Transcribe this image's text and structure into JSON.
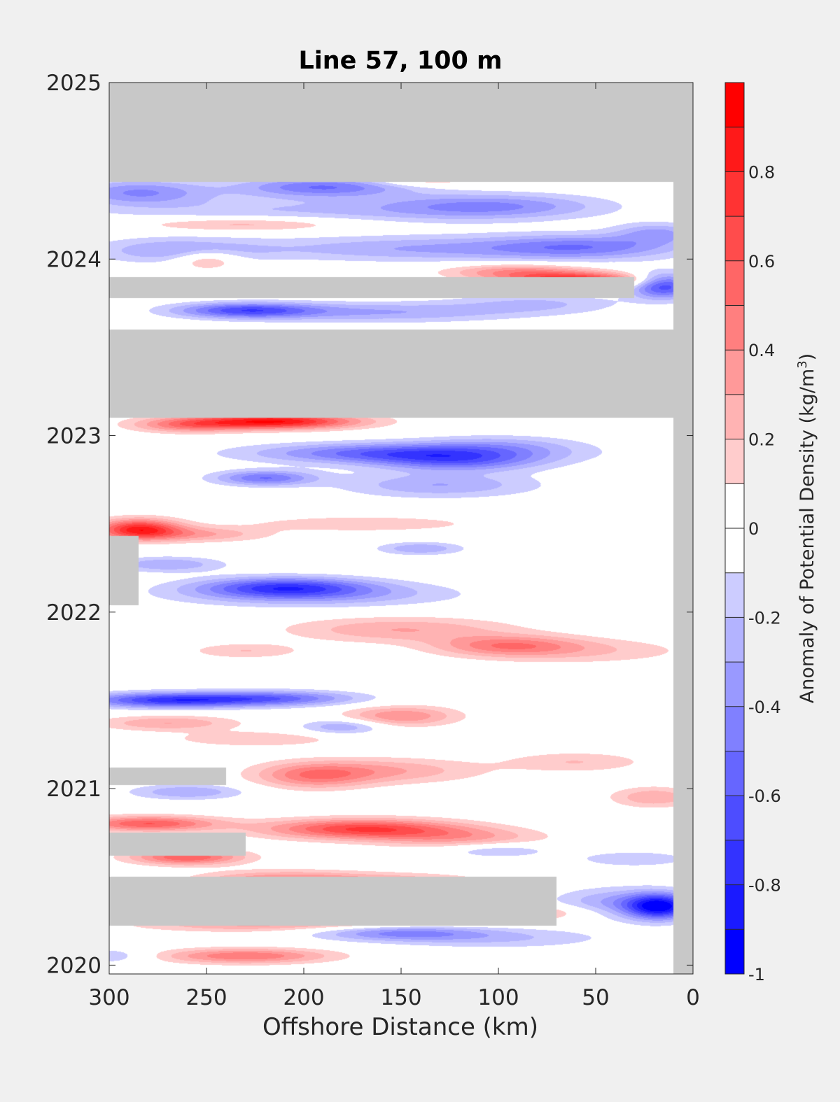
{
  "chart_data": {
    "type": "heatmap",
    "title": "Line 57, 100 m",
    "xlabel": "Offshore Distance (km)",
    "xlim": [
      300,
      0
    ],
    "x_ticks": [
      "300",
      "250",
      "200",
      "150",
      "100",
      "50",
      "0"
    ],
    "ylim": [
      2019.95,
      2025
    ],
    "y_ticks": [
      "2020",
      "2021",
      "2022",
      "2023",
      "2024",
      "2025"
    ],
    "grid": false,
    "colorbar": {
      "label": "Anomaly of Potential Density (kg/m",
      "label_superscript": "3",
      "label_close": ")",
      "range": [
        -1,
        1
      ],
      "step": 0.1,
      "tick_labels": [
        "-1",
        "-0.8",
        "-0.6",
        "-0.4",
        "-0.2",
        "0",
        "0.2",
        "0.4",
        "0.6",
        "0.8"
      ],
      "low_color": "#0000ff",
      "zero_color": "#ffffff",
      "high_color": "#ff0000"
    },
    "missing_color": "#c8c8c8",
    "no_data_periods": [
      {
        "x": [
          300,
          0
        ],
        "y": [
          2024.44,
          2025
        ]
      },
      {
        "x": [
          300,
          10
        ],
        "y": [
          2023.1,
          2023.6
        ]
      },
      {
        "x": [
          300,
          30
        ],
        "y": [
          2023.78,
          2023.9
        ]
      },
      {
        "x": [
          300,
          285
        ],
        "y": [
          2022.04,
          2022.43
        ]
      },
      {
        "x": [
          300,
          240
        ],
        "y": [
          2021.02,
          2021.12
        ]
      },
      {
        "x": [
          300,
          230
        ],
        "y": [
          2020.62,
          2020.75
        ]
      },
      {
        "x": [
          300,
          70
        ],
        "y": [
          2020.22,
          2020.5
        ]
      },
      {
        "x": [
          10,
          0
        ],
        "y": [
          2019.95,
          2025
        ]
      }
    ],
    "anomalies": [
      {
        "x": 285,
        "y": 2024.38,
        "value": -0.4,
        "sx": 25,
        "sy": 0.05
      },
      {
        "x": 190,
        "y": 2024.41,
        "value": -0.5,
        "sx": 30,
        "sy": 0.04
      },
      {
        "x": 105,
        "y": 2024.3,
        "value": -0.4,
        "sx": 40,
        "sy": 0.05
      },
      {
        "x": 210,
        "y": 2024.27,
        "value": -0.2,
        "sx": 70,
        "sy": 0.06
      },
      {
        "x": 230,
        "y": 2024.2,
        "value": 0.3,
        "sx": 40,
        "sy": 0.03
      },
      {
        "x": 140,
        "y": 2024.44,
        "value": 0.2,
        "sx": 20,
        "sy": 0.02
      },
      {
        "x": 55,
        "y": 2024.07,
        "value": -0.4,
        "sx": 35,
        "sy": 0.05
      },
      {
        "x": 18,
        "y": 2024.15,
        "value": -0.3,
        "sx": 15,
        "sy": 0.04
      },
      {
        "x": 140,
        "y": 2024.06,
        "value": -0.3,
        "sx": 60,
        "sy": 0.05
      },
      {
        "x": 250,
        "y": 2024.0,
        "value": 0.3,
        "sx": 12,
        "sy": 0.04
      },
      {
        "x": 265,
        "y": 2024.05,
        "value": -0.3,
        "sx": 30,
        "sy": 0.05
      },
      {
        "x": 60,
        "y": 2023.88,
        "value": 0.8,
        "sx": 25,
        "sy": 0.03
      },
      {
        "x": 90,
        "y": 2023.93,
        "value": 0.4,
        "sx": 25,
        "sy": 0.03
      },
      {
        "x": 15,
        "y": 2023.85,
        "value": -0.7,
        "sx": 12,
        "sy": 0.05
      },
      {
        "x": 230,
        "y": 2023.71,
        "value": -0.6,
        "sx": 25,
        "sy": 0.03
      },
      {
        "x": 160,
        "y": 2023.7,
        "value": -0.3,
        "sx": 50,
        "sy": 0.04
      },
      {
        "x": 80,
        "y": 2023.75,
        "value": -0.2,
        "sx": 30,
        "sy": 0.04
      },
      {
        "x": 215,
        "y": 2023.08,
        "value": 0.9,
        "sx": 30,
        "sy": 0.03
      },
      {
        "x": 260,
        "y": 2023.06,
        "value": 0.4,
        "sx": 20,
        "sy": 0.03
      },
      {
        "x": 150,
        "y": 2022.9,
        "value": -0.6,
        "sx": 50,
        "sy": 0.04
      },
      {
        "x": 120,
        "y": 2022.85,
        "value": -0.4,
        "sx": 30,
        "sy": 0.04
      },
      {
        "x": 220,
        "y": 2022.76,
        "value": -0.5,
        "sx": 18,
        "sy": 0.03
      },
      {
        "x": 130,
        "y": 2022.72,
        "value": -0.3,
        "sx": 35,
        "sy": 0.05
      },
      {
        "x": 100,
        "y": 2022.95,
        "value": -0.2,
        "sx": 30,
        "sy": 0.04
      },
      {
        "x": 285,
        "y": 2022.47,
        "value": 0.8,
        "sx": 15,
        "sy": 0.04
      },
      {
        "x": 255,
        "y": 2022.44,
        "value": 0.3,
        "sx": 25,
        "sy": 0.03
      },
      {
        "x": 170,
        "y": 2022.5,
        "value": 0.2,
        "sx": 40,
        "sy": 0.03
      },
      {
        "x": 140,
        "y": 2022.36,
        "value": -0.3,
        "sx": 15,
        "sy": 0.025
      },
      {
        "x": 270,
        "y": 2022.27,
        "value": -0.3,
        "sx": 20,
        "sy": 0.03
      },
      {
        "x": 210,
        "y": 2022.14,
        "value": -0.6,
        "sx": 30,
        "sy": 0.04
      },
      {
        "x": 195,
        "y": 2022.1,
        "value": -0.3,
        "sx": 50,
        "sy": 0.05
      },
      {
        "x": 95,
        "y": 2021.81,
        "value": 0.4,
        "sx": 25,
        "sy": 0.04
      },
      {
        "x": 150,
        "y": 2021.9,
        "value": 0.3,
        "sx": 40,
        "sy": 0.05
      },
      {
        "x": 60,
        "y": 2021.78,
        "value": 0.2,
        "sx": 40,
        "sy": 0.05
      },
      {
        "x": 230,
        "y": 2021.78,
        "value": 0.2,
        "sx": 20,
        "sy": 0.03
      },
      {
        "x": 270,
        "y": 2021.5,
        "value": -0.7,
        "sx": 30,
        "sy": 0.03
      },
      {
        "x": 215,
        "y": 2021.51,
        "value": -0.5,
        "sx": 30,
        "sy": 0.03
      },
      {
        "x": 150,
        "y": 2021.41,
        "value": 0.4,
        "sx": 20,
        "sy": 0.04
      },
      {
        "x": 270,
        "y": 2021.37,
        "value": 0.3,
        "sx": 25,
        "sy": 0.03
      },
      {
        "x": 225,
        "y": 2021.28,
        "value": 0.2,
        "sx": 30,
        "sy": 0.03
      },
      {
        "x": 180,
        "y": 2021.35,
        "value": -0.3,
        "sx": 15,
        "sy": 0.03
      },
      {
        "x": 195,
        "y": 2021.07,
        "value": 0.4,
        "sx": 20,
        "sy": 0.05
      },
      {
        "x": 160,
        "y": 2021.1,
        "value": 0.3,
        "sx": 35,
        "sy": 0.05
      },
      {
        "x": 260,
        "y": 2020.98,
        "value": -0.3,
        "sx": 20,
        "sy": 0.03
      },
      {
        "x": 20,
        "y": 2020.95,
        "value": 0.3,
        "sx": 15,
        "sy": 0.04
      },
      {
        "x": 60,
        "y": 2021.15,
        "value": 0.2,
        "sx": 25,
        "sy": 0.04
      },
      {
        "x": 170,
        "y": 2020.77,
        "value": 0.7,
        "sx": 35,
        "sy": 0.04
      },
      {
        "x": 280,
        "y": 2020.8,
        "value": 0.6,
        "sx": 25,
        "sy": 0.03
      },
      {
        "x": 260,
        "y": 2020.61,
        "value": 0.6,
        "sx": 20,
        "sy": 0.03
      },
      {
        "x": 120,
        "y": 2020.72,
        "value": 0.3,
        "sx": 30,
        "sy": 0.04
      },
      {
        "x": 210,
        "y": 2020.47,
        "value": 0.5,
        "sx": 30,
        "sy": 0.04
      },
      {
        "x": 150,
        "y": 2020.45,
        "value": 0.4,
        "sx": 30,
        "sy": 0.04
      },
      {
        "x": 160,
        "y": 2020.27,
        "value": 0.5,
        "sx": 40,
        "sy": 0.03
      },
      {
        "x": 95,
        "y": 2020.3,
        "value": 0.3,
        "sx": 30,
        "sy": 0.03
      },
      {
        "x": 230,
        "y": 2020.23,
        "value": 0.3,
        "sx": 40,
        "sy": 0.03
      },
      {
        "x": 30,
        "y": 2020.6,
        "value": -0.2,
        "sx": 20,
        "sy": 0.03
      },
      {
        "x": 100,
        "y": 2020.65,
        "value": -0.2,
        "sx": 20,
        "sy": 0.03
      },
      {
        "x": 17,
        "y": 2020.33,
        "value": -0.9,
        "sx": 12,
        "sy": 0.05
      },
      {
        "x": 40,
        "y": 2020.35,
        "value": -0.3,
        "sx": 22,
        "sy": 0.06
      },
      {
        "x": 150,
        "y": 2020.18,
        "value": -0.4,
        "sx": 30,
        "sy": 0.03
      },
      {
        "x": 100,
        "y": 2020.15,
        "value": -0.2,
        "sx": 40,
        "sy": 0.04
      },
      {
        "x": 230,
        "y": 2020.05,
        "value": 0.5,
        "sx": 30,
        "sy": 0.03
      },
      {
        "x": 300,
        "y": 2020.05,
        "value": -0.2,
        "sx": 15,
        "sy": 0.03
      }
    ]
  }
}
